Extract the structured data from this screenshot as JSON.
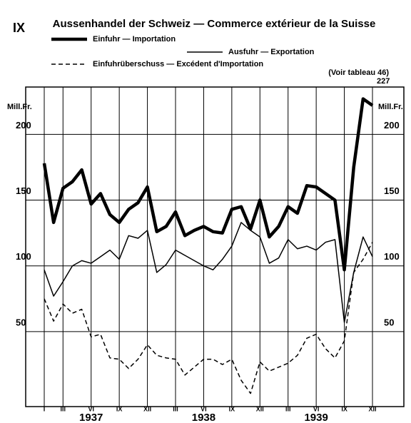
{
  "chart_data": {
    "type": "line",
    "chart_number": "IX",
    "title": "Aussenhandel der Schweiz — Commerce extérieur de la Suisse",
    "subtitle": "(Voir tableau 46)",
    "y_label": "Mill.Fr.",
    "annotations": [
      "227"
    ],
    "year_labels": [
      "1937",
      "1938",
      "1939"
    ],
    "categories": [
      "I",
      null,
      "III",
      null,
      null,
      "VI",
      null,
      null,
      "IX",
      null,
      null,
      "XII",
      null,
      null,
      "III",
      null,
      null,
      "VI",
      null,
      null,
      "IX",
      null,
      null,
      "XII",
      null,
      null,
      "III",
      null,
      null,
      "VI",
      null,
      null,
      "IX",
      null,
      null,
      "XII"
    ],
    "series": [
      {
        "name": "Einfuhr — Importation",
        "color": "#000000",
        "style": "thick",
        "values": [
          178,
          133,
          159,
          164,
          173,
          147,
          155,
          139,
          133,
          143,
          148,
          160,
          126,
          130,
          141,
          123,
          127,
          130,
          126,
          125,
          143,
          145,
          128,
          150,
          122,
          130,
          145,
          140,
          161,
          160,
          155,
          150,
          97,
          175,
          227,
          222
        ]
      },
      {
        "name": "Ausfuhr — Exportation",
        "color": "#000000",
        "style": "thin",
        "values": [
          97,
          77,
          88,
          100,
          104,
          102,
          107,
          112,
          105,
          123,
          121,
          127,
          95,
          101,
          112,
          108,
          104,
          100,
          97,
          105,
          115,
          133,
          127,
          122,
          102,
          106,
          120,
          113,
          115,
          112,
          118,
          120,
          57,
          95,
          122,
          107
        ]
      },
      {
        "name": "Einfuhrüberschuss — Excédent d'Importation",
        "color": "#000000",
        "style": "dashed",
        "values": [
          75,
          58,
          71,
          64,
          67,
          46,
          48,
          30,
          29,
          22,
          29,
          40,
          32,
          30,
          29,
          17,
          23,
          29,
          29,
          25,
          29,
          13,
          3,
          27,
          20,
          23,
          26,
          32,
          45,
          48,
          37,
          30,
          43,
          95,
          105,
          118
        ]
      }
    ],
    "ylim": [
      -7,
      236
    ],
    "yticks": [
      50,
      100,
      150,
      200
    ],
    "grid": true
  }
}
